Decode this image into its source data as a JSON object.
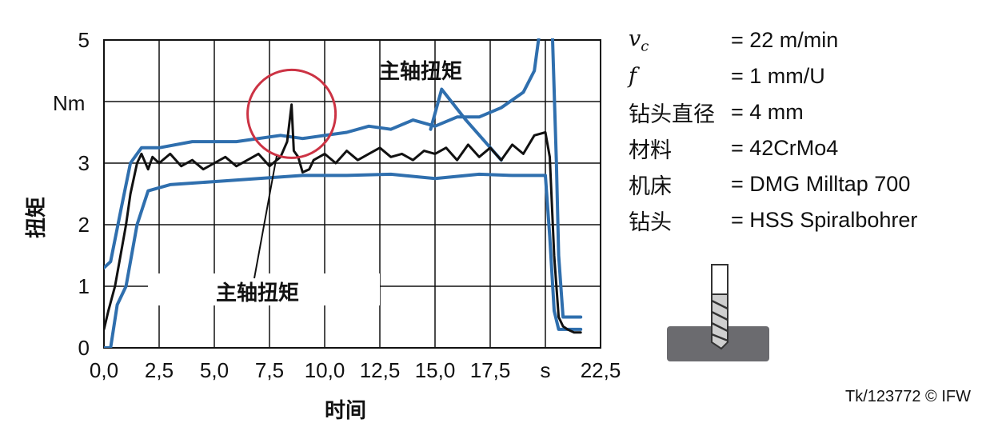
{
  "chart_data": {
    "type": "line",
    "xlabel": "时间",
    "ylabel": "扭矩",
    "y_unit_label": "Nm",
    "x_ticks": [
      "0,0",
      "2,5",
      "5,0",
      "7,5",
      "10,0",
      "12,5",
      "15,0",
      "17,5",
      "s",
      "22,5"
    ],
    "y_ticks": [
      "0",
      "1",
      "2",
      "3",
      "",
      "5"
    ],
    "xlim": [
      0,
      22.5
    ],
    "ylim": [
      0,
      5
    ],
    "grid": true,
    "annotations": [
      "主轴扭矩",
      "主轴扭矩"
    ],
    "highlight_circle_center": [
      8.5,
      3.8
    ],
    "colors": {
      "measured": "#111111",
      "band": "#2f6fae",
      "circle": "#cc3344"
    },
    "series": [
      {
        "style": "black",
        "x": [
          0,
          0.2,
          0.5,
          0.8,
          1.0,
          1.2,
          1.5,
          1.7,
          2.0,
          2.2,
          2.5,
          3.0,
          3.5,
          4.0,
          4.5,
          5.0,
          5.5,
          6.0,
          6.5,
          7.0,
          7.5,
          8.0,
          8.3,
          8.5,
          8.6,
          8.8,
          9.0,
          9.3,
          9.5,
          10.0,
          10.5,
          11.0,
          11.5,
          12.0,
          12.5,
          13.0,
          13.5,
          14.0,
          14.5,
          15.0,
          15.5,
          16.0,
          16.5,
          17.0,
          17.5,
          18.0,
          18.5,
          19.0,
          19.5,
          20.0,
          20.2,
          20.4,
          20.6,
          20.8,
          21.0,
          21.3,
          21.6
        ],
        "y": [
          0.3,
          0.6,
          1.0,
          1.6,
          2.0,
          2.5,
          3.0,
          3.15,
          2.9,
          3.1,
          3.0,
          3.15,
          2.95,
          3.05,
          2.9,
          3.0,
          3.1,
          2.95,
          3.05,
          3.15,
          2.95,
          3.1,
          3.35,
          3.95,
          3.2,
          3.1,
          2.85,
          2.9,
          3.05,
          3.15,
          3.0,
          3.2,
          3.05,
          3.15,
          3.25,
          3.1,
          3.15,
          3.05,
          3.2,
          3.15,
          3.25,
          3.05,
          3.3,
          3.1,
          3.25,
          3.05,
          3.3,
          3.15,
          3.45,
          3.5,
          3.1,
          1.5,
          0.5,
          0.35,
          0.3,
          0.25,
          0.25
        ]
      },
      {
        "style": "blue-upper",
        "x": [
          0,
          0.3,
          0.8,
          1.2,
          1.7,
          2.5,
          4.0,
          6.0,
          8.0,
          9.0,
          10.0,
          11.0,
          12.0,
          13.0,
          14.0,
          15.0,
          16.0,
          17.0,
          18.0,
          19.0,
          19.5,
          19.8,
          20.3,
          20.5,
          20.6,
          20.8,
          21.6
        ],
        "y": [
          1.3,
          1.4,
          2.3,
          3.0,
          3.25,
          3.25,
          3.35,
          3.35,
          3.45,
          3.4,
          3.45,
          3.5,
          3.6,
          3.55,
          3.7,
          3.6,
          3.75,
          3.75,
          3.9,
          4.15,
          4.5,
          5.3,
          5.3,
          3.0,
          1.5,
          0.5,
          0.5
        ]
      },
      {
        "style": "blue-lower",
        "x": [
          0,
          0.3,
          0.6,
          1.0,
          1.5,
          2.0,
          3.0,
          5.0,
          7.0,
          9.0,
          11.0,
          13.0,
          15.0,
          17.0,
          18.5,
          19.5,
          20.0,
          20.2,
          20.4,
          20.6,
          20.8,
          21.6
        ],
        "y": [
          0,
          0,
          0.7,
          1.0,
          2.0,
          2.55,
          2.65,
          2.7,
          2.75,
          2.8,
          2.8,
          2.82,
          2.75,
          2.82,
          2.8,
          2.8,
          2.8,
          1.8,
          0.6,
          0.3,
          0.3,
          0.3
        ]
      },
      {
        "style": "blue-wedge",
        "x": [
          14.8,
          15.3,
          16.4,
          18.0
        ],
        "y": [
          3.55,
          4.2,
          3.7,
          3.05
        ]
      }
    ]
  },
  "params": [
    {
      "key": "v_c",
      "math": true,
      "value": "= 22 m/min"
    },
    {
      "key": "f",
      "math": true,
      "value": "= 1 mm/U"
    },
    {
      "key": "钻头直径",
      "math": false,
      "value": "= 4 mm"
    },
    {
      "key": "材料",
      "math": false,
      "value": "= 42CrMo4"
    },
    {
      "key": "机床",
      "math": false,
      "value": "= DMG Milltap 700"
    },
    {
      "key": "钻头",
      "math": false,
      "value": "= HSS Spiralbohrer"
    }
  ],
  "credit": "Tk/123772 © IFW"
}
